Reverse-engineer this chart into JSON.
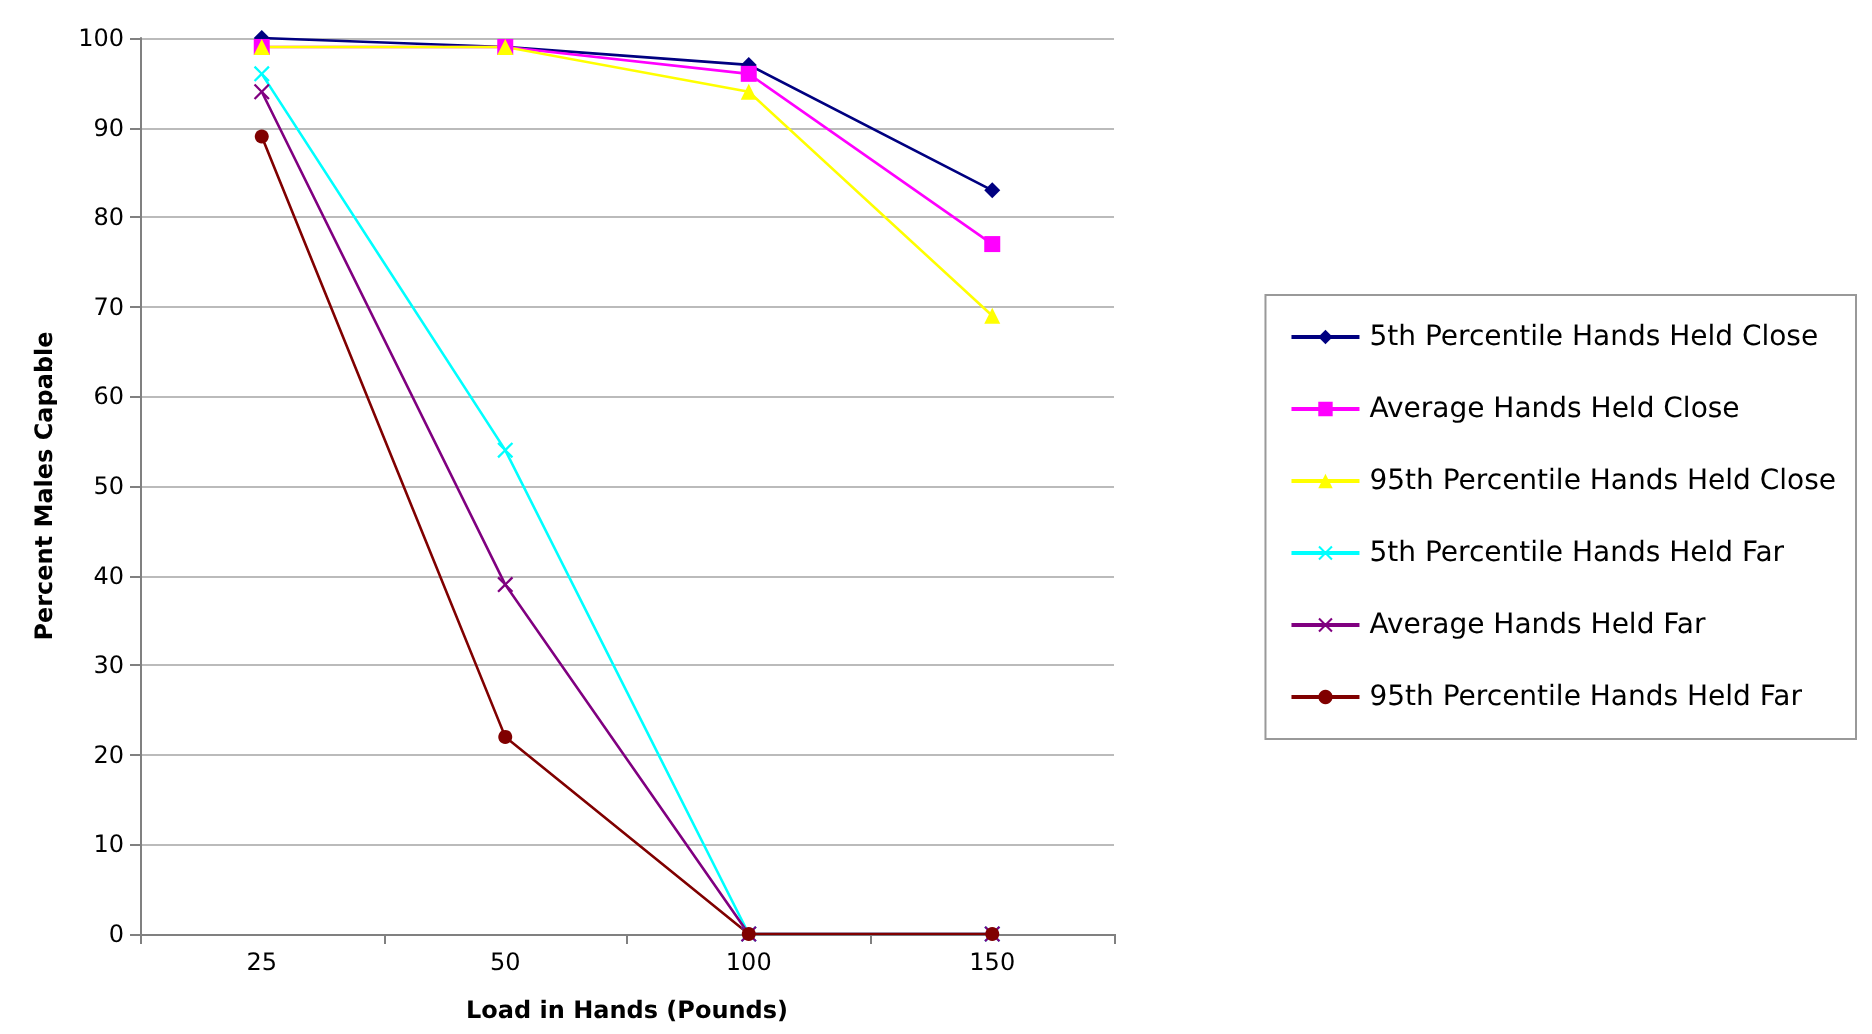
{
  "chart_data": {
    "type": "line",
    "xlabel": "Load in Hands (Pounds)",
    "ylabel": "Percent Males Capable",
    "categories": [
      "25",
      "50",
      "100",
      "150"
    ],
    "series": [
      {
        "name": "5th Percentile Hands Held Close",
        "color": "#000080",
        "marker": "diamond",
        "values": [
          100,
          99,
          97,
          83
        ]
      },
      {
        "name": "Average Hands Held Close",
        "color": "#ff00ff",
        "marker": "square",
        "values": [
          99,
          99,
          96,
          77
        ]
      },
      {
        "name": "95th Percentile Hands Held Close",
        "color": "#ffff00",
        "marker": "triangle",
        "values": [
          99,
          99,
          94,
          69
        ]
      },
      {
        "name": "5th Percentile Hands Held Far",
        "color": "#00ffff",
        "marker": "cross",
        "values": [
          96,
          54,
          0,
          0
        ]
      },
      {
        "name": "Average Hands Held Far",
        "color": "#800080",
        "marker": "cross",
        "values": [
          94,
          39,
          0,
          0
        ]
      },
      {
        "name": "95th Percentile Hands Held Far",
        "color": "#800000",
        "marker": "circle",
        "values": [
          89,
          22,
          0,
          0
        ]
      }
    ],
    "ylim": [
      0,
      100
    ],
    "yticks": [
      0,
      10,
      20,
      30,
      40,
      50,
      60,
      70,
      80,
      90,
      100
    ],
    "grid": "y",
    "legend": "right",
    "line_style": "solid"
  }
}
